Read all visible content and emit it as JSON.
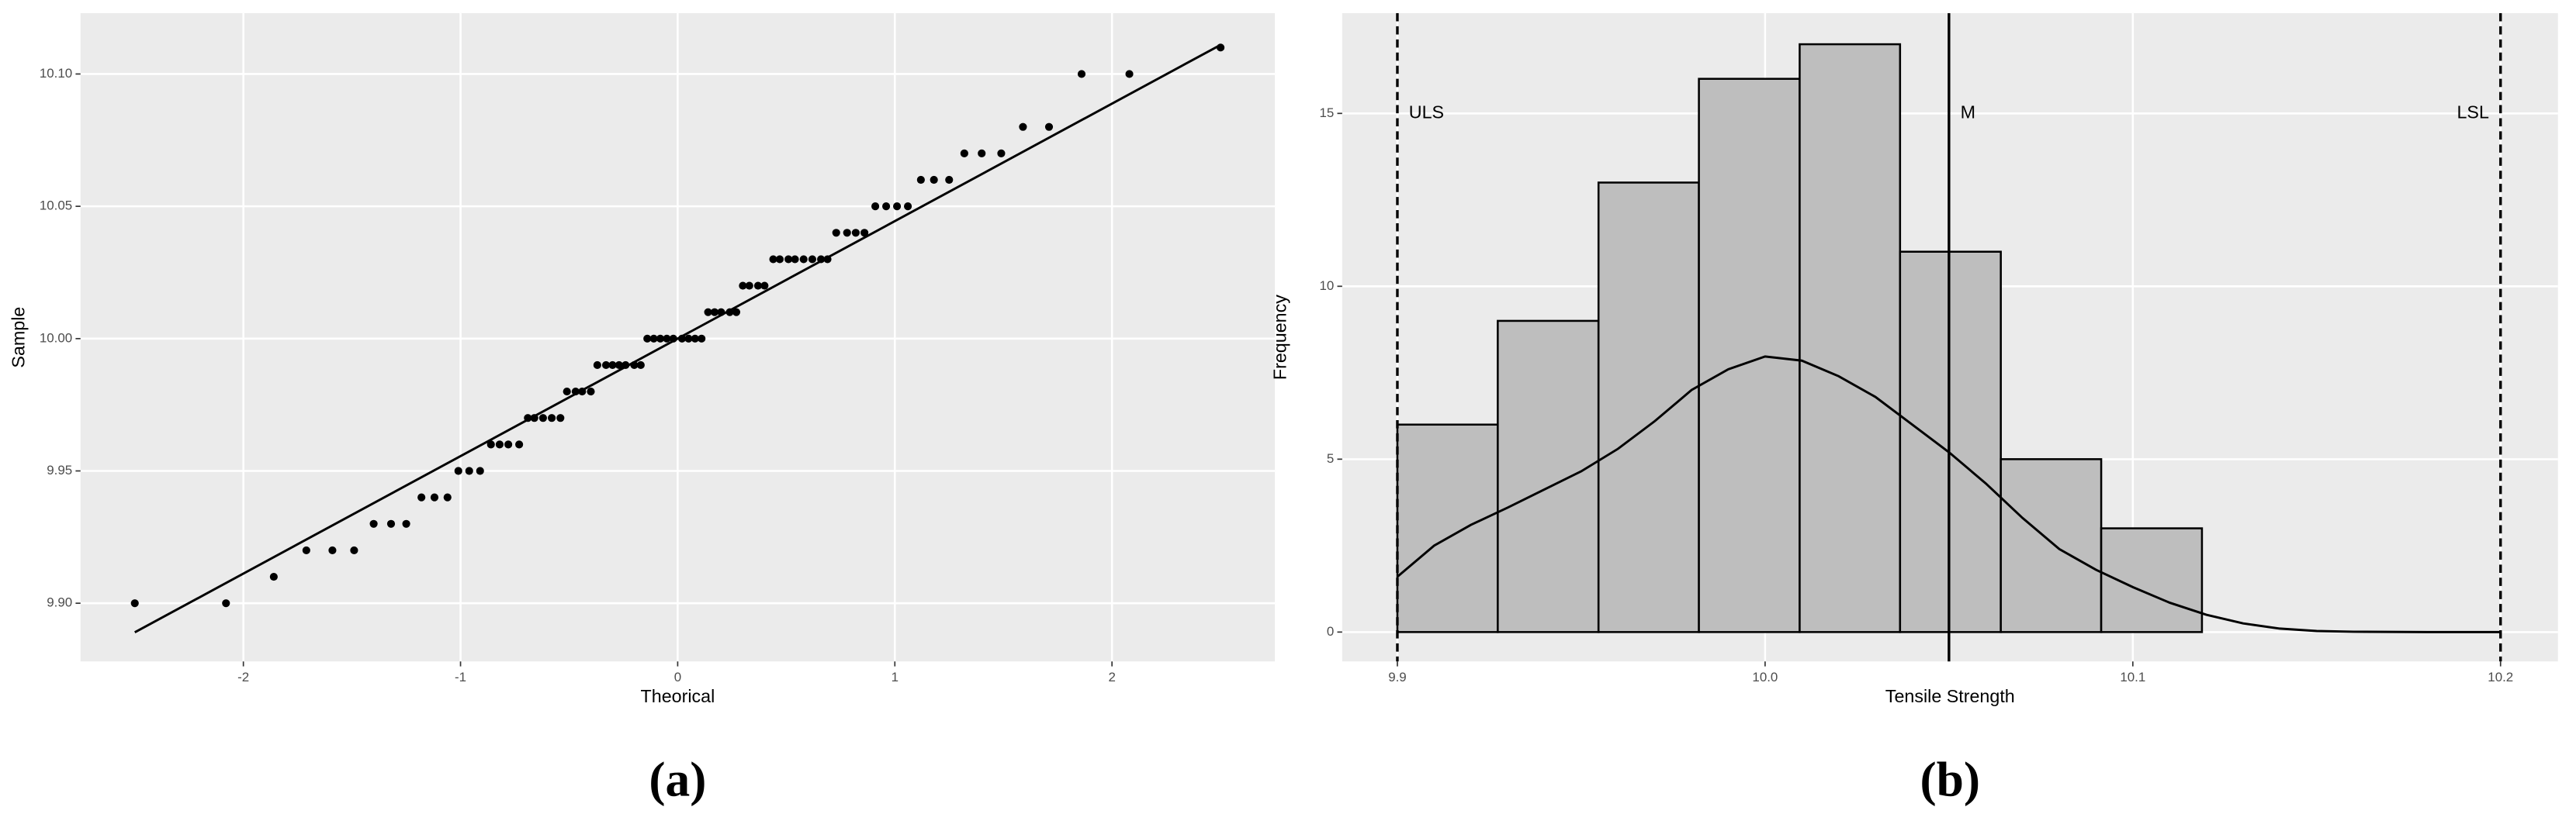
{
  "chart_data": [
    {
      "type": "scatter",
      "caption": "(a)",
      "x_label": "Theorical",
      "y_label": "Sample",
      "color": "#000000",
      "x": [
        -2.5,
        -2.08,
        -1.86,
        -1.71,
        -1.59,
        -1.49,
        -1.4,
        -1.32,
        -1.25,
        -1.18,
        -1.12,
        -1.06,
        -1.01,
        -0.96,
        -0.91,
        -0.86,
        -0.82,
        -0.78,
        -0.73,
        -0.69,
        -0.66,
        -0.62,
        -0.58,
        -0.54,
        -0.51,
        -0.47,
        -0.44,
        -0.4,
        -0.37,
        -0.33,
        -0.3,
        -0.27,
        -0.24,
        -0.2,
        -0.17,
        -0.14,
        -0.11,
        -0.08,
        -0.05,
        -0.02,
        0.02,
        0.05,
        0.08,
        0.11,
        0.14,
        0.17,
        0.2,
        0.24,
        0.27,
        0.3,
        0.33,
        0.37,
        0.4,
        0.44,
        0.47,
        0.51,
        0.54,
        0.58,
        0.62,
        0.66,
        0.69,
        0.73,
        0.78,
        0.82,
        0.86,
        0.91,
        0.96,
        1.01,
        1.06,
        1.12,
        1.18,
        1.25,
        1.32,
        1.4,
        1.49,
        1.59,
        1.71,
        1.86,
        2.08,
        2.5
      ],
      "values": [
        9.9,
        9.9,
        9.91,
        9.92,
        9.92,
        9.92,
        9.93,
        9.93,
        9.93,
        9.94,
        9.94,
        9.94,
        9.95,
        9.95,
        9.95,
        9.96,
        9.96,
        9.96,
        9.96,
        9.97,
        9.97,
        9.97,
        9.97,
        9.97,
        9.98,
        9.98,
        9.98,
        9.98,
        9.99,
        9.99,
        9.99,
        9.99,
        9.99,
        9.99,
        9.99,
        10,
        10,
        10,
        10,
        10,
        10,
        10,
        10,
        10,
        10.01,
        10.01,
        10.01,
        10.01,
        10.01,
        10.02,
        10.02,
        10.02,
        10.02,
        10.03,
        10.03,
        10.03,
        10.03,
        10.03,
        10.03,
        10.03,
        10.03,
        10.04,
        10.04,
        10.04,
        10.04,
        10.05,
        10.05,
        10.05,
        10.05,
        10.06,
        10.06,
        10.06,
        10.07,
        10.07,
        10.07,
        10.08,
        10.08,
        10.1,
        10.1,
        10.11
      ],
      "reference_line": {
        "x": [
          -2.5,
          2.5
        ],
        "y": [
          9.889,
          10.111
        ]
      },
      "xlim": [
        -2.75,
        2.75
      ],
      "xticks": [
        -2,
        -1,
        0,
        1,
        2
      ],
      "ylim": [
        9.878,
        10.123
      ],
      "yticks": [
        {
          "value": 9.9,
          "label": "9.90"
        },
        {
          "value": 9.95,
          "label": "9.95"
        },
        {
          "value": 10,
          "label": "10.00"
        },
        {
          "value": 10.05,
          "label": "10.05"
        },
        {
          "value": 10.1,
          "label": "10.10"
        }
      ],
      "grid": true
    },
    {
      "type": "histogram",
      "caption": "(b)",
      "x_label": "Tensile Strength",
      "y_label": "Frequency",
      "color": "#bebebe",
      "bins": [
        9.9,
        9.9273,
        9.9547,
        9.982,
        10.0094,
        10.0367,
        10.0641,
        10.0914,
        10.1188
      ],
      "values": [
        6,
        9,
        13,
        16,
        17,
        11,
        5,
        3
      ],
      "density": {
        "x": [
          9.9,
          9.91,
          9.92,
          9.93,
          9.95,
          9.96,
          9.97,
          9.98,
          9.99,
          10,
          10.01,
          10.02,
          10.03,
          10.04,
          10.05,
          10.06,
          10.07,
          10.08,
          10.09,
          10.1,
          10.11,
          10.12,
          10.13,
          10.14,
          10.15,
          10.16,
          10.18,
          10.2
        ],
        "y": [
          1.6,
          2.5,
          3.1,
          3.6,
          4.65,
          5.3,
          6.1,
          7,
          7.6,
          7.97,
          7.85,
          7.4,
          6.8,
          6,
          5.2,
          4.3,
          3.3,
          2.4,
          1.8,
          1.3,
          0.85,
          0.5,
          0.25,
          0.1,
          0.03,
          0.01,
          0,
          0
        ]
      },
      "vlines": [
        {
          "label": "ULS",
          "x": 9.9,
          "style": "dashed"
        },
        {
          "label": "M",
          "x": 10.05,
          "style": "solid"
        },
        {
          "label": "LSL",
          "x": 10.2,
          "style": "dashed"
        }
      ],
      "vline_label_y": 15,
      "xlim": [
        9.885,
        10.2156
      ],
      "xticks": [
        9.9,
        {
          "value": 10,
          "label": "10.0"
        },
        10.1,
        10.2
      ],
      "ylim": [
        -0.85,
        17.9
      ],
      "yticks": [
        0,
        5,
        10,
        15
      ],
      "grid": true
    }
  ]
}
